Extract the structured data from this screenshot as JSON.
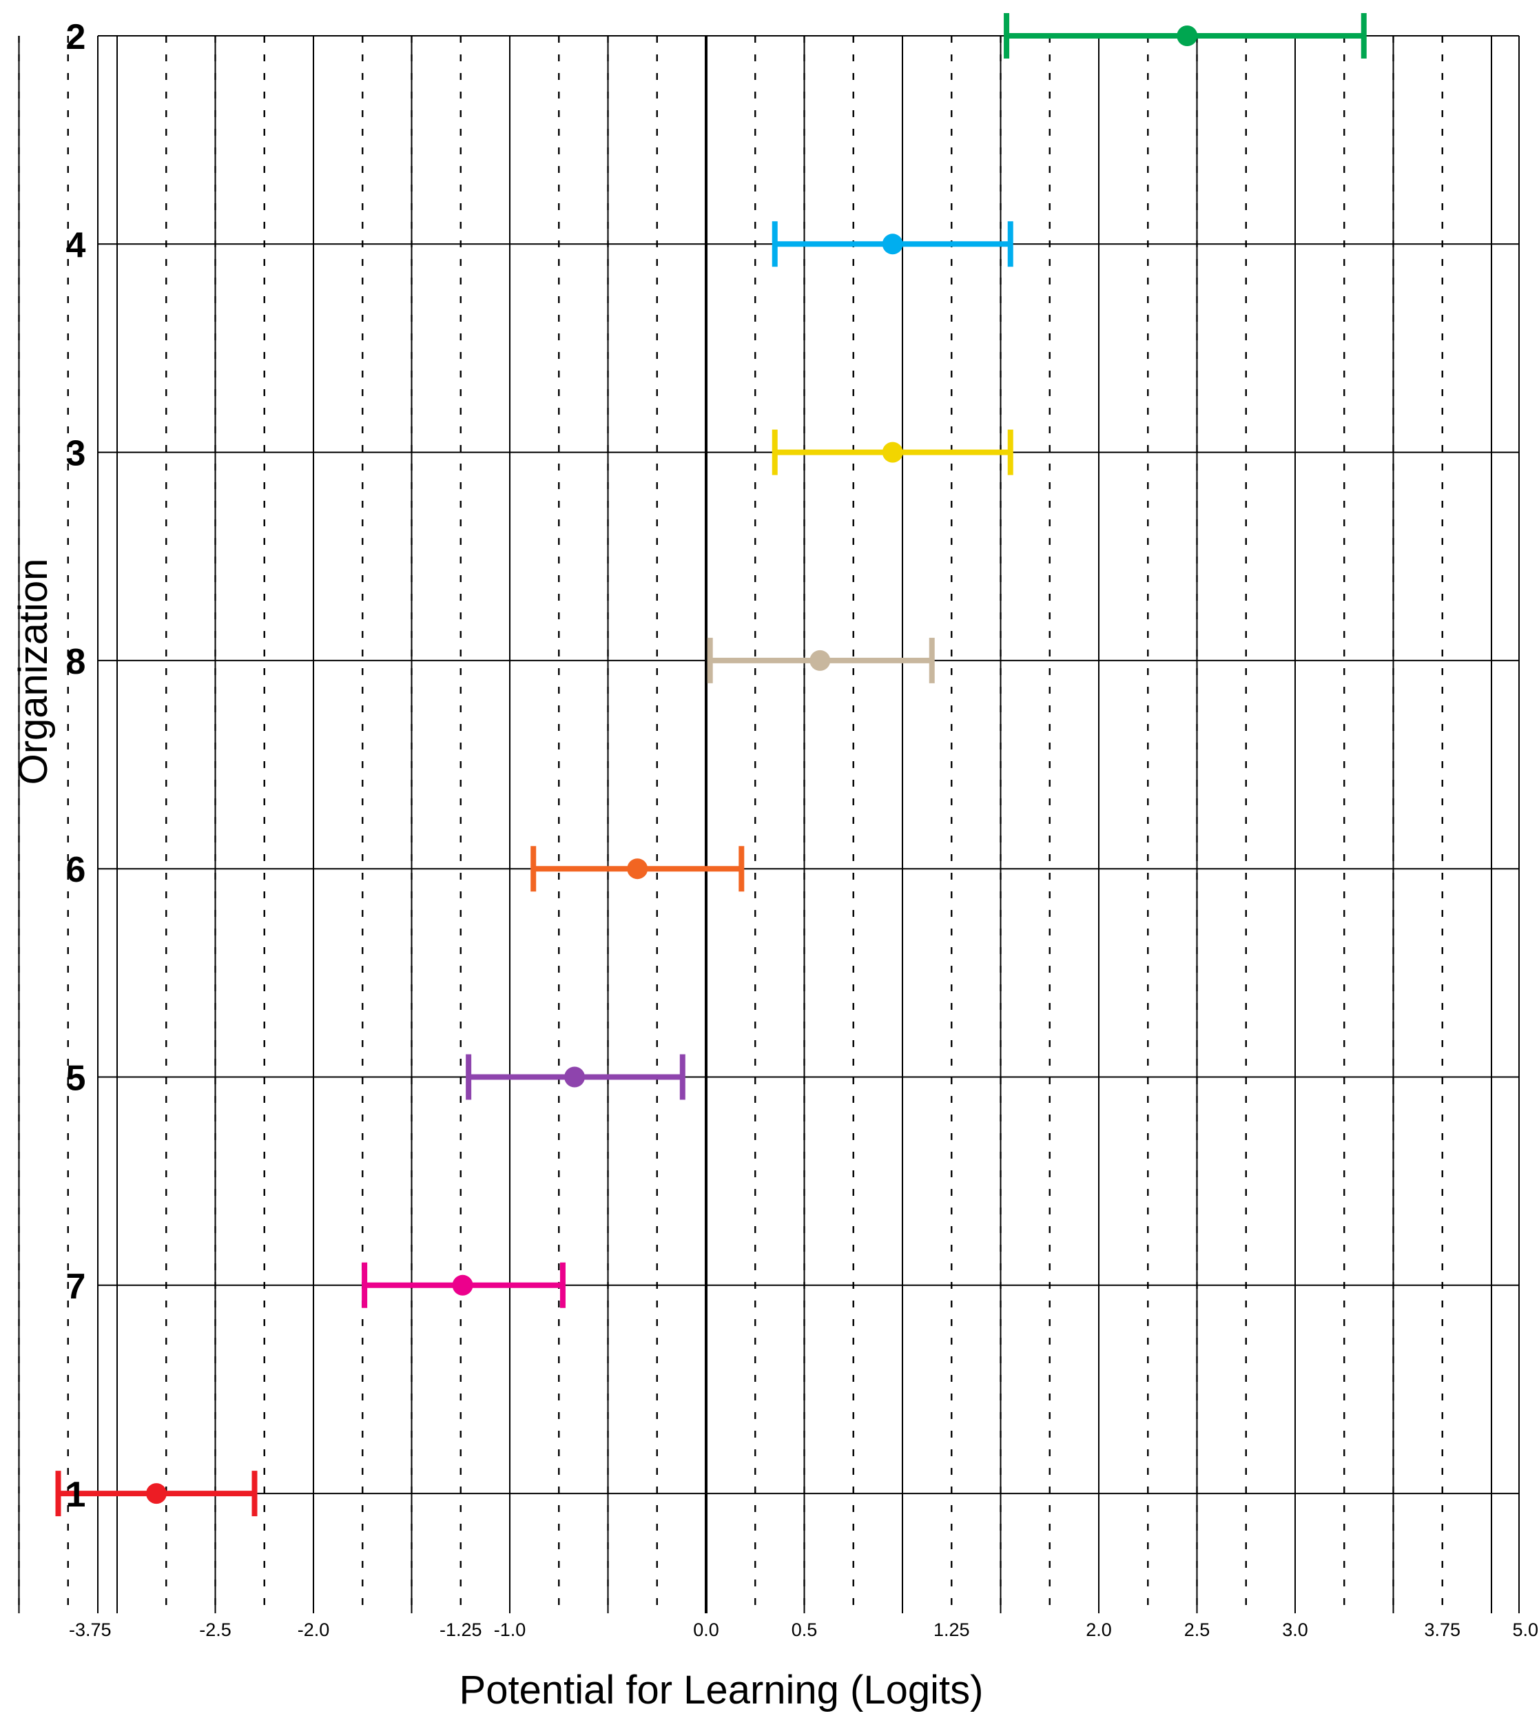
{
  "chart_data": {
    "type": "scatter",
    "subtype": "error-bar forest plot",
    "title": "",
    "xlabel": "Potential for Learning (Logits)",
    "ylabel": "Organization",
    "xlim": [
      -3.75,
      5.0
    ],
    "x_tick_labels": [
      "-3.75",
      "-2.5",
      "-2.0",
      "-1.25",
      "-1.0",
      "0.0",
      "0.5",
      "1.25",
      "2.0",
      "2.5",
      "3.0",
      "3.75",
      "5.0"
    ],
    "grid": true,
    "series": [
      {
        "organization": "2",
        "estimate": 2.45,
        "lower": 1.53,
        "upper": 3.35,
        "color": "#00a650"
      },
      {
        "organization": "4",
        "estimate": 0.95,
        "lower": 0.35,
        "upper": 1.55,
        "color": "#00aeef"
      },
      {
        "organization": "3",
        "estimate": 0.95,
        "lower": 0.35,
        "upper": 1.55,
        "color": "#f2d500"
      },
      {
        "organization": "8",
        "estimate": 0.58,
        "lower": 0.02,
        "upper": 1.15,
        "color": "#c8b79e"
      },
      {
        "organization": "6",
        "estimate": -0.35,
        "lower": -0.88,
        "upper": 0.18,
        "color": "#f26522"
      },
      {
        "organization": "5",
        "estimate": -0.67,
        "lower": -1.21,
        "upper": -0.12,
        "color": "#8e44ad"
      },
      {
        "organization": "7",
        "estimate": -1.24,
        "lower": -1.74,
        "upper": -0.73,
        "color": "#ec008c"
      },
      {
        "organization": "1",
        "estimate": -2.8,
        "lower": -3.3,
        "upper": -2.3,
        "color": "#ed1c24"
      }
    ]
  }
}
